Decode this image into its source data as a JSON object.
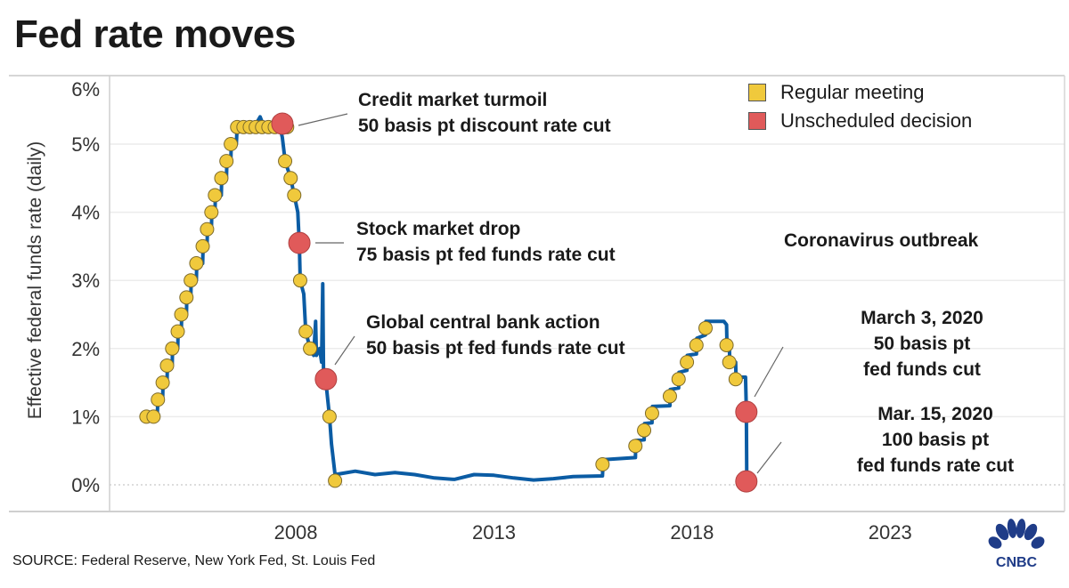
{
  "title": "Fed rate moves",
  "source": "SOURCE: Federal Reserve, New York Fed, St. Louis Fed",
  "logo_text": "CNBC",
  "colors": {
    "line": "#0b5ca4",
    "regular": "#f0c93c",
    "unscheduled": "#e05a5a",
    "grid": "#ececec"
  },
  "legend": [
    {
      "label": "Regular meeting",
      "color": "#f0c93c"
    },
    {
      "label": "Unscheduled decision",
      "color": "#e05a5a"
    }
  ],
  "annotations": [
    {
      "lines": [
        "Credit market turmoil",
        "50 basis pt discount rate cut"
      ]
    },
    {
      "lines": [
        "Stock market drop",
        "75 basis pt fed funds rate cut"
      ]
    },
    {
      "lines": [
        "Global central bank action",
        "50 basis pt fed funds rate cut"
      ]
    },
    {
      "lines": [
        "Coronavirus outbreak"
      ]
    },
    {
      "lines": [
        "March 3, 2020",
        "50 basis pt",
        "fed funds cut"
      ]
    },
    {
      "lines": [
        "Mar. 15, 2020",
        "100 basis pt",
        "fed funds rate cut"
      ]
    }
  ],
  "chart_data": {
    "type": "line",
    "title": "Fed rate moves",
    "xlabel": "",
    "ylabel": "Effective federal funds rate (daily)",
    "xlim": [
      2003.3,
      2027.4
    ],
    "ylim": [
      0,
      6
    ],
    "x_ticks": [
      2008,
      2013,
      2018,
      2023
    ],
    "x_tick_labels": [
      "2008",
      "2013",
      "2018",
      "2023"
    ],
    "y_ticks": [
      0,
      1,
      2,
      3,
      4,
      5,
      6
    ],
    "y_tick_labels": [
      "0%",
      "1%",
      "2%",
      "3%",
      "4%",
      "5%",
      "6%"
    ],
    "grid": "horizontal",
    "legend_position": "top-right",
    "effective_rate": [
      [
        2004.2,
        1.0
      ],
      [
        2004.5,
        1.0
      ],
      [
        2004.52,
        1.25
      ],
      [
        2004.64,
        1.25
      ],
      [
        2004.65,
        1.5
      ],
      [
        2004.75,
        1.5
      ],
      [
        2004.76,
        1.75
      ],
      [
        2004.88,
        1.75
      ],
      [
        2004.89,
        2.0
      ],
      [
        2005.02,
        2.0
      ],
      [
        2005.03,
        2.25
      ],
      [
        2005.11,
        2.25
      ],
      [
        2005.12,
        2.5
      ],
      [
        2005.24,
        2.5
      ],
      [
        2005.25,
        2.75
      ],
      [
        2005.35,
        2.75
      ],
      [
        2005.36,
        3.0
      ],
      [
        2005.49,
        3.0
      ],
      [
        2005.5,
        3.25
      ],
      [
        2005.65,
        3.25
      ],
      [
        2005.66,
        3.5
      ],
      [
        2005.76,
        3.5
      ],
      [
        2005.77,
        3.75
      ],
      [
        2005.87,
        3.75
      ],
      [
        2005.88,
        4.0
      ],
      [
        2005.96,
        4.0
      ],
      [
        2005.97,
        4.25
      ],
      [
        2006.12,
        4.25
      ],
      [
        2006.13,
        4.5
      ],
      [
        2006.25,
        4.5
      ],
      [
        2006.26,
        4.75
      ],
      [
        2006.36,
        4.75
      ],
      [
        2006.37,
        5.0
      ],
      [
        2006.5,
        5.0
      ],
      [
        2006.52,
        5.25
      ],
      [
        2006.9,
        5.25
      ],
      [
        2007.0,
        5.3
      ],
      [
        2007.1,
        5.4
      ],
      [
        2007.2,
        5.25
      ],
      [
        2007.6,
        5.25
      ],
      [
        2007.66,
        5.1
      ],
      [
        2007.73,
        4.75
      ],
      [
        2007.87,
        4.5
      ],
      [
        2007.96,
        4.25
      ],
      [
        2008.05,
        4.0
      ],
      [
        2008.09,
        3.5
      ],
      [
        2008.11,
        3.0
      ],
      [
        2008.2,
        2.8
      ],
      [
        2008.25,
        2.25
      ],
      [
        2008.36,
        2.0
      ],
      [
        2008.45,
        1.9
      ],
      [
        2008.5,
        2.4
      ],
      [
        2008.52,
        1.9
      ],
      [
        2008.6,
        2.0
      ],
      [
        2008.65,
        1.8
      ],
      [
        2008.68,
        2.95
      ],
      [
        2008.7,
        1.6
      ],
      [
        2008.76,
        1.5
      ],
      [
        2008.85,
        1.0
      ],
      [
        2008.9,
        0.6
      ],
      [
        2008.99,
        0.15
      ],
      [
        2009.5,
        0.2
      ],
      [
        2010.0,
        0.15
      ],
      [
        2010.5,
        0.18
      ],
      [
        2011.0,
        0.15
      ],
      [
        2011.5,
        0.1
      ],
      [
        2012.0,
        0.08
      ],
      [
        2012.5,
        0.15
      ],
      [
        2013.0,
        0.14
      ],
      [
        2013.5,
        0.1
      ],
      [
        2014.0,
        0.07
      ],
      [
        2014.5,
        0.09
      ],
      [
        2015.0,
        0.12
      ],
      [
        2015.74,
        0.13
      ],
      [
        2015.76,
        0.37
      ],
      [
        2016.57,
        0.4
      ],
      [
        2016.58,
        0.65
      ],
      [
        2016.79,
        0.66
      ],
      [
        2016.8,
        0.9
      ],
      [
        2016.99,
        0.91
      ],
      [
        2017.0,
        1.15
      ],
      [
        2017.44,
        1.16
      ],
      [
        2017.45,
        1.4
      ],
      [
        2017.66,
        1.42
      ],
      [
        2017.67,
        1.65
      ],
      [
        2017.87,
        1.68
      ],
      [
        2017.88,
        1.9
      ],
      [
        2018.11,
        1.92
      ],
      [
        2018.12,
        2.15
      ],
      [
        2018.34,
        2.2
      ],
      [
        2018.35,
        2.4
      ],
      [
        2018.8,
        2.4
      ],
      [
        2018.87,
        2.35
      ],
      [
        2018.88,
        2.1
      ],
      [
        2018.94,
        2.05
      ],
      [
        2018.95,
        1.85
      ],
      [
        2019.1,
        1.8
      ],
      [
        2019.11,
        1.58
      ],
      [
        2019.35,
        1.58
      ],
      [
        2019.37,
        1.1
      ],
      [
        2019.38,
        0.05
      ]
    ],
    "regular_meetings": [
      [
        2004.23,
        1.0
      ],
      [
        2004.41,
        1.0
      ],
      [
        2004.52,
        1.25
      ],
      [
        2004.64,
        1.5
      ],
      [
        2004.75,
        1.75
      ],
      [
        2004.88,
        2.0
      ],
      [
        2005.02,
        2.25
      ],
      [
        2005.11,
        2.5
      ],
      [
        2005.24,
        2.75
      ],
      [
        2005.35,
        3.0
      ],
      [
        2005.49,
        3.25
      ],
      [
        2005.65,
        3.5
      ],
      [
        2005.76,
        3.75
      ],
      [
        2005.87,
        4.0
      ],
      [
        2005.96,
        4.25
      ],
      [
        2006.12,
        4.5
      ],
      [
        2006.25,
        4.75
      ],
      [
        2006.36,
        5.0
      ],
      [
        2006.52,
        5.25
      ],
      [
        2006.68,
        5.25
      ],
      [
        2006.84,
        5.25
      ],
      [
        2006.99,
        5.25
      ],
      [
        2007.15,
        5.25
      ],
      [
        2007.31,
        5.25
      ],
      [
        2007.47,
        5.25
      ],
      [
        2007.62,
        5.25
      ],
      [
        2007.78,
        5.25
      ],
      [
        2007.73,
        4.75
      ],
      [
        2007.87,
        4.5
      ],
      [
        2007.96,
        4.25
      ],
      [
        2008.11,
        3.0
      ],
      [
        2008.25,
        2.25
      ],
      [
        2008.36,
        2.0
      ],
      [
        2008.85,
        1.0
      ],
      [
        2008.99,
        0.06
      ],
      [
        2015.74,
        0.3
      ],
      [
        2016.57,
        0.57
      ],
      [
        2016.79,
        0.8
      ],
      [
        2016.99,
        1.05
      ],
      [
        2017.44,
        1.3
      ],
      [
        2017.66,
        1.55
      ],
      [
        2017.87,
        1.8
      ],
      [
        2018.11,
        2.05
      ],
      [
        2018.34,
        2.3
      ],
      [
        2018.87,
        2.05
      ],
      [
        2018.94,
        1.8
      ],
      [
        2019.1,
        1.55
      ]
    ],
    "unscheduled_decisions": [
      [
        2007.66,
        5.3
      ],
      [
        2008.09,
        3.55
      ],
      [
        2008.76,
        1.55
      ],
      [
        2019.37,
        1.07
      ],
      [
        2019.37,
        0.05
      ]
    ]
  }
}
